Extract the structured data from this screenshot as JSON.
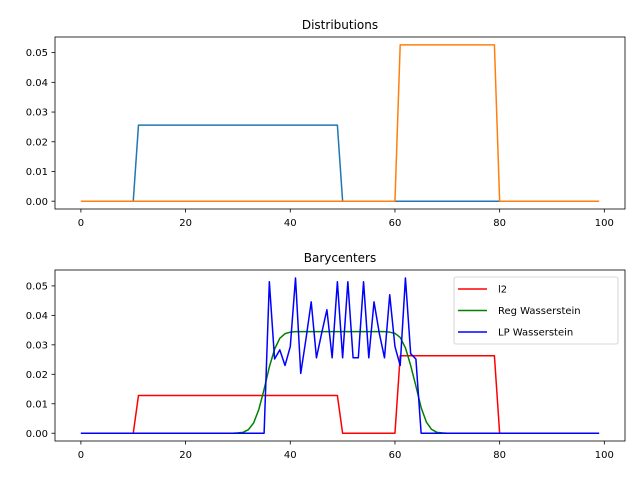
{
  "chart_data": [
    {
      "type": "line",
      "title": "Distributions",
      "xlabel": "",
      "ylabel": "",
      "xlim": [
        -4.95,
        103.95
      ],
      "ylim": [
        -0.00263,
        0.05526
      ],
      "xticks": [
        0,
        20,
        40,
        60,
        80,
        100
      ],
      "xtick_labels": [
        "0",
        "20",
        "40",
        "60",
        "80",
        "100"
      ],
      "yticks": [
        0,
        0.01,
        0.02,
        0.03,
        0.04,
        0.05
      ],
      "ytick_labels": [
        "0.00",
        "0.01",
        "0.02",
        "0.03",
        "0.04",
        "0.05"
      ],
      "grid": false,
      "legend": null,
      "x_start": 0,
      "series": [
        {
          "color": "#1f77b4",
          "values": [
            0,
            0,
            0,
            0,
            0,
            0,
            0,
            0,
            0,
            0,
            0,
            0.0256,
            0.0256,
            0.0256,
            0.0256,
            0.0256,
            0.0256,
            0.0256,
            0.0256,
            0.0256,
            0.0256,
            0.0256,
            0.0256,
            0.0256,
            0.0256,
            0.0256,
            0.0256,
            0.0256,
            0.0256,
            0.0256,
            0.0256,
            0.0256,
            0.0256,
            0.0256,
            0.0256,
            0.0256,
            0.0256,
            0.0256,
            0.0256,
            0.0256,
            0.0256,
            0.0256,
            0.0256,
            0.0256,
            0.0256,
            0.0256,
            0.0256,
            0.0256,
            0.0256,
            0.0256,
            0,
            0,
            0,
            0,
            0,
            0,
            0,
            0,
            0,
            0,
            0,
            0,
            0,
            0,
            0,
            0,
            0,
            0,
            0,
            0,
            0,
            0,
            0,
            0,
            0,
            0,
            0,
            0,
            0,
            0,
            0,
            0,
            0,
            0,
            0,
            0,
            0,
            0,
            0,
            0,
            0,
            0,
            0,
            0,
            0,
            0,
            0,
            0,
            0,
            0
          ]
        },
        {
          "color": "#ff7f0e",
          "values": [
            0,
            0,
            0,
            0,
            0,
            0,
            0,
            0,
            0,
            0,
            0,
            0,
            0,
            0,
            0,
            0,
            0,
            0,
            0,
            0,
            0,
            0,
            0,
            0,
            0,
            0,
            0,
            0,
            0,
            0,
            0,
            0,
            0,
            0,
            0,
            0,
            0,
            0,
            0,
            0,
            0,
            0,
            0,
            0,
            0,
            0,
            0,
            0,
            0,
            0,
            0,
            0,
            0,
            0,
            0,
            0,
            0,
            0,
            0,
            0,
            0,
            0.0526,
            0.0526,
            0.0526,
            0.0526,
            0.0526,
            0.0526,
            0.0526,
            0.0526,
            0.0526,
            0.0526,
            0.0526,
            0.0526,
            0.0526,
            0.0526,
            0.0526,
            0.0526,
            0.0526,
            0.0526,
            0.0526,
            0,
            0,
            0,
            0,
            0,
            0,
            0,
            0,
            0,
            0,
            0,
            0,
            0,
            0,
            0,
            0,
            0,
            0,
            0,
            0
          ]
        }
      ]
    },
    {
      "type": "line",
      "title": "Barycenters",
      "xlabel": "",
      "ylabel": "",
      "xlim": [
        -4.95,
        103.95
      ],
      "ylim": [
        -0.00264,
        0.0554
      ],
      "xticks": [
        0,
        20,
        40,
        60,
        80,
        100
      ],
      "xtick_labels": [
        "0",
        "20",
        "40",
        "60",
        "80",
        "100"
      ],
      "yticks": [
        0,
        0.01,
        0.02,
        0.03,
        0.04,
        0.05
      ],
      "ytick_labels": [
        "0.00",
        "0.01",
        "0.02",
        "0.03",
        "0.04",
        "0.05"
      ],
      "grid": false,
      "legend": "top-right",
      "x_start": 0,
      "series": [
        {
          "name": "l2",
          "color": "#ff0000",
          "values": [
            0,
            0,
            0,
            0,
            0,
            0,
            0,
            0,
            0,
            0,
            0,
            0.0128,
            0.0128,
            0.0128,
            0.0128,
            0.0128,
            0.0128,
            0.0128,
            0.0128,
            0.0128,
            0.0128,
            0.0128,
            0.0128,
            0.0128,
            0.0128,
            0.0128,
            0.0128,
            0.0128,
            0.0128,
            0.0128,
            0.0128,
            0.0128,
            0.0128,
            0.0128,
            0.0128,
            0.0128,
            0.0128,
            0.0128,
            0.0128,
            0.0128,
            0.0128,
            0.0128,
            0.0128,
            0.0128,
            0.0128,
            0.0128,
            0.0128,
            0.0128,
            0.0128,
            0.0128,
            0,
            0,
            0,
            0,
            0,
            0,
            0,
            0,
            0,
            0,
            0,
            0.0263,
            0.0263,
            0.0263,
            0.0263,
            0.0263,
            0.0263,
            0.0263,
            0.0263,
            0.0263,
            0.0263,
            0.0263,
            0.0263,
            0.0263,
            0.0263,
            0.0263,
            0.0263,
            0.0263,
            0.0263,
            0.0263,
            0,
            0,
            0,
            0,
            0,
            0,
            0,
            0,
            0,
            0,
            0,
            0,
            0,
            0,
            0,
            0,
            0,
            0,
            0,
            0
          ]
        },
        {
          "name": "Reg Wasserstein",
          "color": "#008000",
          "values": [
            0,
            0,
            0,
            0,
            0,
            0,
            0,
            0,
            0,
            0,
            0,
            0,
            0,
            0,
            0,
            0,
            0,
            0,
            0,
            0,
            0,
            0,
            0,
            0,
            0,
            0,
            0,
            0,
            0,
            0,
            0.0001,
            0.0003,
            0.0012,
            0.0035,
            0.0081,
            0.0149,
            0.0225,
            0.0285,
            0.0322,
            0.0338,
            0.0343,
            0.0345,
            0.0345,
            0.0345,
            0.0345,
            0.0345,
            0.0345,
            0.0345,
            0.0345,
            0.0345,
            0.0345,
            0.0345,
            0.0345,
            0.0345,
            0.0345,
            0.0345,
            0.0345,
            0.0345,
            0.0345,
            0.0343,
            0.0339,
            0.0325,
            0.029,
            0.023,
            0.016,
            0.0087,
            0.0038,
            0.0013,
            0.0003,
            0.0001,
            0,
            0,
            0,
            0,
            0,
            0,
            0,
            0,
            0,
            0,
            0,
            0,
            0,
            0,
            0,
            0,
            0,
            0,
            0,
            0,
            0,
            0,
            0,
            0,
            0,
            0,
            0,
            0,
            0,
            0
          ]
        },
        {
          "name": "LP Wasserstein",
          "color": "#0000ff",
          "values": [
            0,
            0,
            0,
            0,
            0,
            0,
            0,
            0,
            0,
            0,
            0,
            0,
            0,
            0,
            0,
            0,
            0,
            0,
            0,
            0,
            0,
            0,
            0,
            0,
            0,
            0,
            0,
            0,
            0,
            0,
            0,
            0,
            0,
            0,
            0,
            0,
            0.0514,
            0.0252,
            0.0283,
            0.023,
            0.0294,
            0.0527,
            0.0203,
            0.032,
            0.0446,
            0.0256,
            0.034,
            0.0419,
            0.0256,
            0.0514,
            0.0256,
            0.0514,
            0.0256,
            0.0256,
            0.0514,
            0.0256,
            0.0446,
            0.034,
            0.0256,
            0.047,
            0.0294,
            0.023,
            0.0527,
            0.027,
            0.0252,
            0,
            0,
            0,
            0,
            0,
            0,
            0,
            0,
            0,
            0,
            0,
            0,
            0,
            0,
            0,
            0,
            0,
            0,
            0,
            0,
            0,
            0,
            0,
            0,
            0,
            0,
            0,
            0,
            0,
            0,
            0,
            0,
            0,
            0,
            0
          ]
        }
      ]
    }
  ]
}
